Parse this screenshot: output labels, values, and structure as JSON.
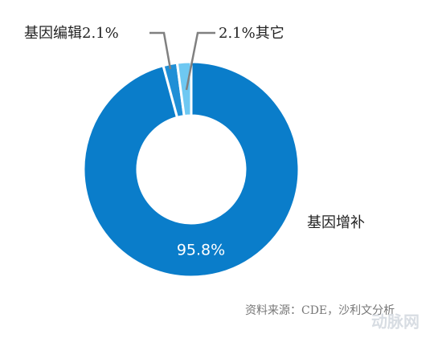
{
  "chart_data": {
    "type": "donut",
    "categories": [
      "基因增补",
      "基因编辑",
      "其它"
    ],
    "values": [
      95.8,
      2.1,
      2.1
    ],
    "value_labels": [
      "95.8%",
      "2.1%",
      "2.1%"
    ],
    "colors": [
      "#0a7dca",
      "#1f8fd6",
      "#6ec8f2"
    ],
    "source": "资料来源：CDE，沙利文分析",
    "watermark": "动脉网"
  }
}
